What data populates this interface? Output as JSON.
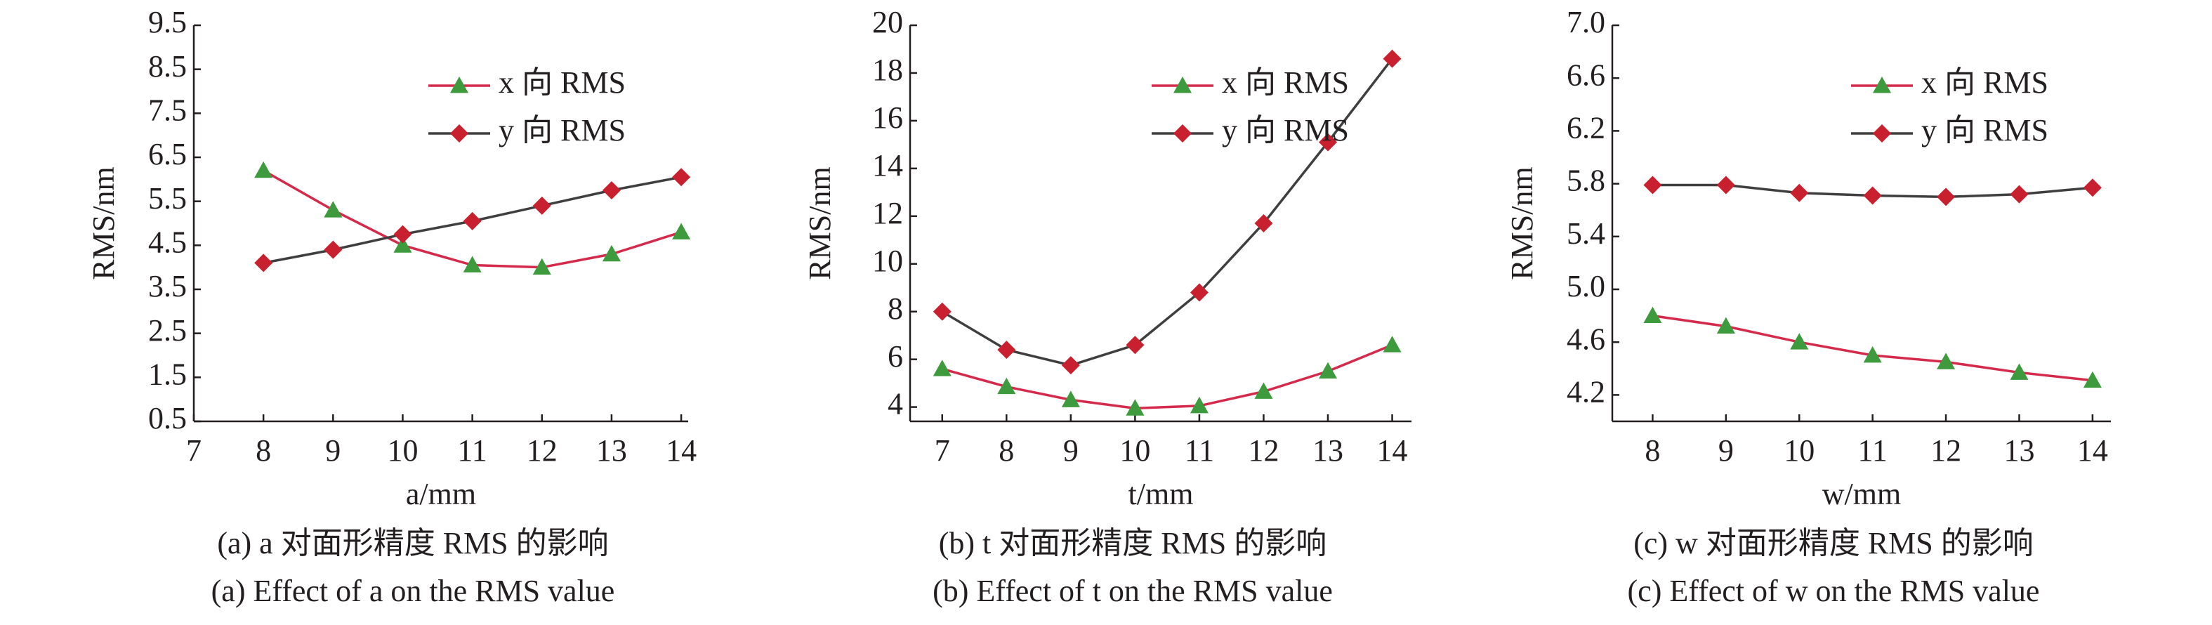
{
  "chart_data": [
    {
      "type": "line",
      "ylabel": "RMS/nm",
      "xlabel": "a/mm",
      "caption": "(a) a 对面形精度 RMS 的影响",
      "subtitle": "(a) Effect of a on the RMS value",
      "x": [
        8,
        9,
        10,
        11,
        12,
        13,
        14
      ],
      "xlim": [
        7,
        14.1
      ],
      "xticks": [
        7,
        8,
        9,
        10,
        11,
        12,
        13,
        14
      ],
      "ylim": [
        0.5,
        9.5
      ],
      "yticks": [
        0.5,
        1.5,
        2.5,
        3.5,
        4.5,
        5.5,
        6.5,
        7.5,
        8.5,
        9.5
      ],
      "legend": "upper right",
      "series": [
        {
          "name": "x 向 RMS",
          "color": "#d42a4c",
          "marker": "triangle",
          "marker_color": "#3d9a3d",
          "values": [
            6.2,
            5.3,
            4.5,
            4.05,
            4.0,
            4.3,
            4.8
          ]
        },
        {
          "name": "y 向 RMS",
          "color": "#3f3f3f",
          "marker": "diamond",
          "marker_color": "#c8202e",
          "values": [
            4.1,
            4.4,
            4.75,
            5.05,
            5.4,
            5.75,
            6.05
          ]
        }
      ]
    },
    {
      "type": "line",
      "ylabel": "RMS/nm",
      "xlabel": "t/mm",
      "caption": "(b) t 对面形精度 RMS 的影响",
      "subtitle": "(b) Effect of t on the RMS value",
      "x": [
        7,
        8,
        9,
        10,
        11,
        12,
        13,
        14
      ],
      "xlim": [
        6.5,
        14.3
      ],
      "xticks": [
        7,
        8,
        9,
        10,
        11,
        12,
        13,
        14
      ],
      "ylim": [
        3.4,
        20
      ],
      "yticks": [
        4,
        6,
        8,
        10,
        12,
        14,
        16,
        18,
        20
      ],
      "legend": "upper right",
      "series": [
        {
          "name": "x 向 RMS",
          "color": "#d42a4c",
          "marker": "triangle",
          "marker_color": "#3d9a3d",
          "values": [
            5.6,
            4.85,
            4.3,
            3.95,
            4.05,
            4.65,
            5.5,
            6.6
          ]
        },
        {
          "name": "y 向 RMS",
          "color": "#3f3f3f",
          "marker": "diamond",
          "marker_color": "#c8202e",
          "values": [
            8.0,
            6.4,
            5.75,
            6.6,
            8.8,
            11.7,
            15.1,
            18.6
          ]
        }
      ]
    },
    {
      "type": "line",
      "ylabel": "RMS/nm",
      "xlabel": "w/mm",
      "caption": "(c) w 对面形精度 RMS 的影响",
      "subtitle": "(c) Effect of w on the RMS value",
      "x": [
        8,
        9,
        10,
        11,
        12,
        13,
        14
      ],
      "xlim": [
        7.45,
        14.25
      ],
      "xticks": [
        8,
        9,
        10,
        11,
        12,
        13,
        14
      ],
      "ylim": [
        4.0,
        7.0
      ],
      "yticks": [
        4.2,
        4.6,
        {
          "value": 5,
          "label": "5.0"
        },
        5.4,
        5.8,
        6.2,
        6.6,
        {
          "value": 7,
          "label": "7.0"
        }
      ],
      "legend": "upper right",
      "series": [
        {
          "name": "x 向 RMS",
          "color": "#d42a4c",
          "marker": "triangle",
          "marker_color": "#3d9a3d",
          "values": [
            4.8,
            4.72,
            4.6,
            4.5,
            4.45,
            4.37,
            4.31
          ]
        },
        {
          "name": "y 向 RMS",
          "color": "#3f3f3f",
          "marker": "diamond",
          "marker_color": "#c8202e",
          "values": [
            5.79,
            5.79,
            5.73,
            5.71,
            5.7,
            5.72,
            5.77
          ]
        }
      ]
    }
  ]
}
